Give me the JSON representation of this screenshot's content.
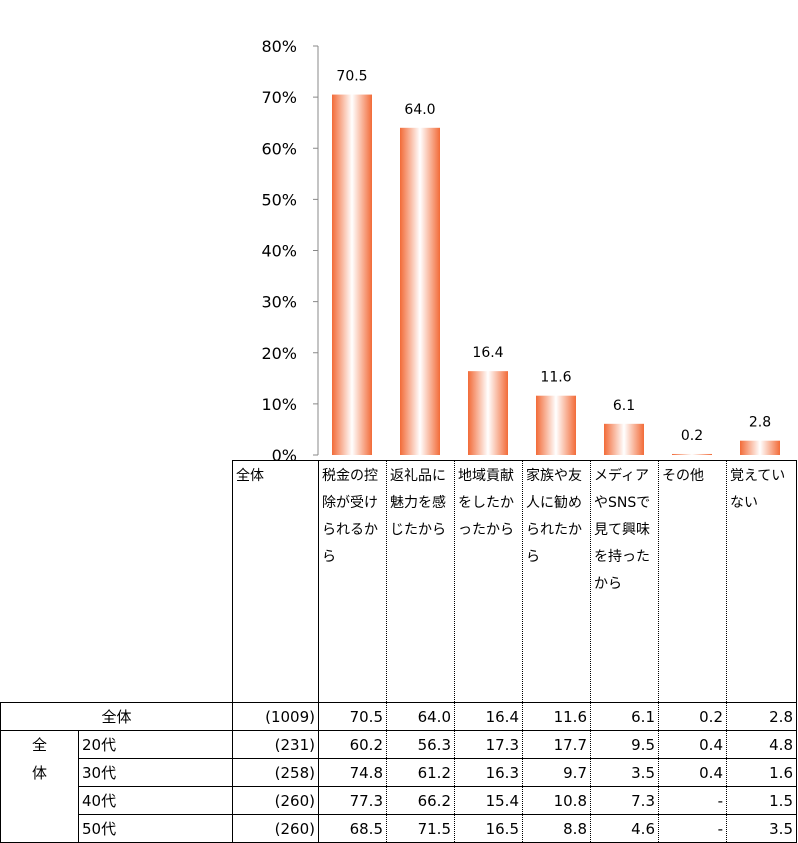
{
  "chart_data": {
    "type": "bar",
    "yaxis": {
      "ticks": [
        "0%",
        "10%",
        "20%",
        "30%",
        "40%",
        "50%",
        "60%",
        "70%",
        "80%"
      ],
      "ylim": [
        0,
        80
      ]
    },
    "categories": [
      "税金の控除が受けられるから",
      "返礼品に魅力を感じたから",
      "地域貢献をしたかったから",
      "家族や友人に勧められたから",
      "メディアやSNSで見て興味を持ったから",
      "その他",
      "覚えていない"
    ],
    "values": [
      70.5,
      64.0,
      16.4,
      11.6,
      6.1,
      0.2,
      2.8
    ],
    "data_labels": [
      "70.5",
      "64.0",
      "16.4",
      "11.6",
      "6.1",
      "0.2",
      "2.8"
    ],
    "bar_color": "#f26b38"
  },
  "table": {
    "header_total": "全体",
    "group_label": "全体",
    "rows": [
      {
        "label": "全体",
        "n": "(1009)",
        "values": [
          "70.5",
          "64.0",
          "16.4",
          "11.6",
          "6.1",
          "0.2",
          "2.8"
        ]
      },
      {
        "label": "20代",
        "n": "(231)",
        "values": [
          "60.2",
          "56.3",
          "17.3",
          "17.7",
          "9.5",
          "0.4",
          "4.8"
        ]
      },
      {
        "label": "30代",
        "n": "(258)",
        "values": [
          "74.8",
          "61.2",
          "16.3",
          "9.7",
          "3.5",
          "0.4",
          "1.6"
        ]
      },
      {
        "label": "40代",
        "n": "(260)",
        "values": [
          "77.3",
          "66.2",
          "15.4",
          "10.8",
          "7.3",
          "-",
          "1.5"
        ]
      },
      {
        "label": "50代",
        "n": "(260)",
        "values": [
          "68.5",
          "71.5",
          "16.5",
          "8.8",
          "4.6",
          "-",
          "3.5"
        ]
      }
    ]
  }
}
